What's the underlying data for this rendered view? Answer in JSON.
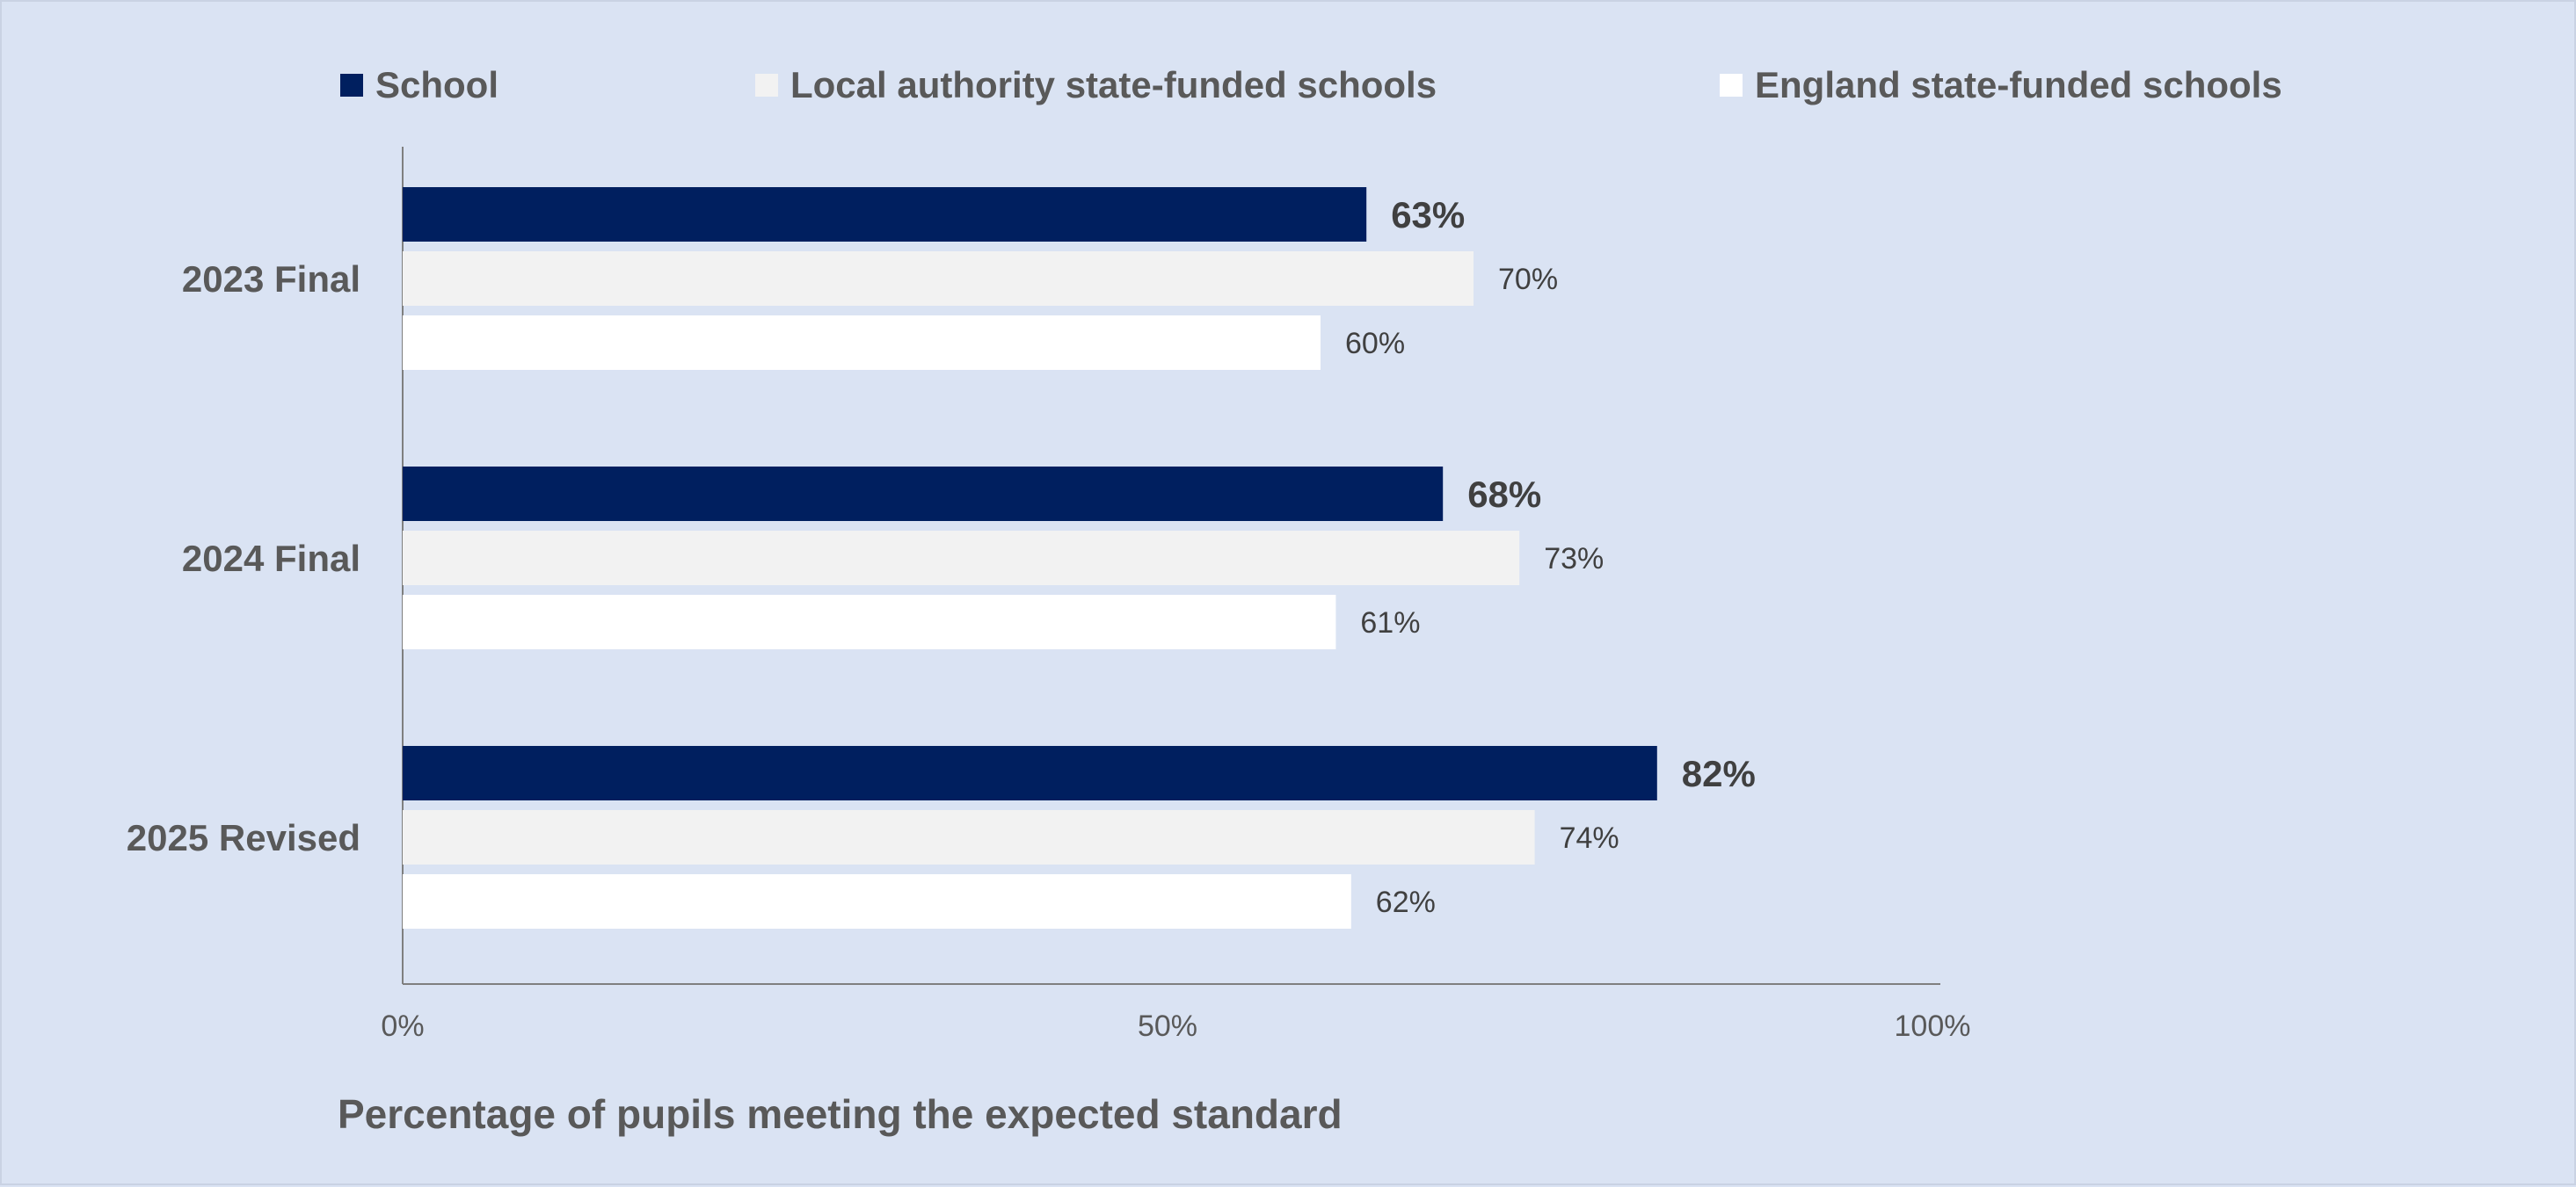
{
  "chart_data": {
    "type": "bar",
    "orientation": "horizontal",
    "categories": [
      "2023 Final",
      "2024 Final",
      "2025 Revised"
    ],
    "series": [
      {
        "name": "School",
        "values": [
          63,
          68,
          82
        ],
        "color": "#001f5f",
        "labels": [
          "63%",
          "68%",
          "82%"
        ]
      },
      {
        "name": "Local authority state-funded schools",
        "values": [
          70,
          73,
          74
        ],
        "color": "#f2f2f2",
        "labels": [
          "70%",
          "73%",
          "74%"
        ]
      },
      {
        "name": "England state-funded schools",
        "values": [
          60,
          61,
          62
        ],
        "color": "#ffffff",
        "labels": [
          "60%",
          "61%",
          "62%"
        ]
      }
    ],
    "xlabel": "Percentage of pupils meeting the expected standard",
    "xlim": [
      0,
      100
    ],
    "xticks": [
      {
        "value": 0,
        "label": "0%"
      },
      {
        "value": 50,
        "label": "50%"
      },
      {
        "value": 100,
        "label": "100%"
      }
    ],
    "legend_position": "top",
    "grid": false,
    "background_color": "#dae3f3"
  }
}
